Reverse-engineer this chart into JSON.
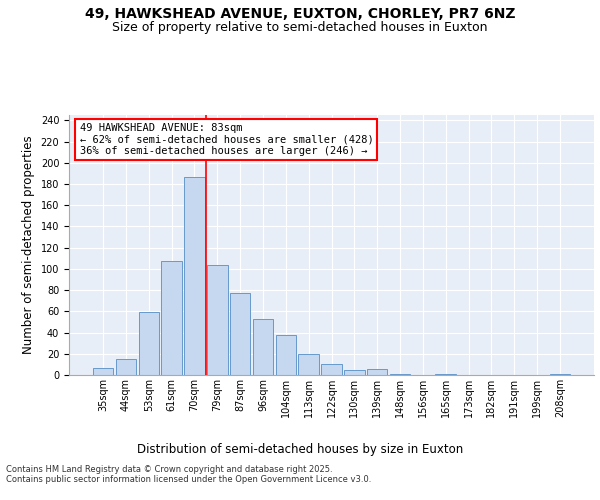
{
  "title_line1": "49, HAWKSHEAD AVENUE, EUXTON, CHORLEY, PR7 6NZ",
  "title_line2": "Size of property relative to semi-detached houses in Euxton",
  "xlabel": "Distribution of semi-detached houses by size in Euxton",
  "ylabel": "Number of semi-detached properties",
  "categories": [
    "35sqm",
    "44sqm",
    "53sqm",
    "61sqm",
    "70sqm",
    "79sqm",
    "87sqm",
    "96sqm",
    "104sqm",
    "113sqm",
    "122sqm",
    "130sqm",
    "139sqm",
    "148sqm",
    "156sqm",
    "165sqm",
    "173sqm",
    "182sqm",
    "191sqm",
    "199sqm",
    "208sqm"
  ],
  "values": [
    7,
    15,
    59,
    107,
    187,
    104,
    77,
    53,
    38,
    20,
    10,
    5,
    6,
    1,
    0,
    1,
    0,
    0,
    0,
    0,
    1
  ],
  "bar_color": "#c5d8f0",
  "bar_edge_color": "#6699cc",
  "vline_x": 4.5,
  "vline_color": "red",
  "annotation_text": "49 HAWKSHEAD AVENUE: 83sqm\n← 62% of semi-detached houses are smaller (428)\n36% of semi-detached houses are larger (246) →",
  "annotation_box_color": "white",
  "annotation_box_edge_color": "red",
  "ylim": [
    0,
    245
  ],
  "yticks": [
    0,
    20,
    40,
    60,
    80,
    100,
    120,
    140,
    160,
    180,
    200,
    220,
    240
  ],
  "bg_color": "#e8eef7",
  "footer_text": "Contains HM Land Registry data © Crown copyright and database right 2025.\nContains public sector information licensed under the Open Government Licence v3.0.",
  "title_fontsize": 10,
  "subtitle_fontsize": 9,
  "axis_label_fontsize": 8.5,
  "tick_fontsize": 7,
  "annotation_fontsize": 7.5,
  "footer_fontsize": 6
}
